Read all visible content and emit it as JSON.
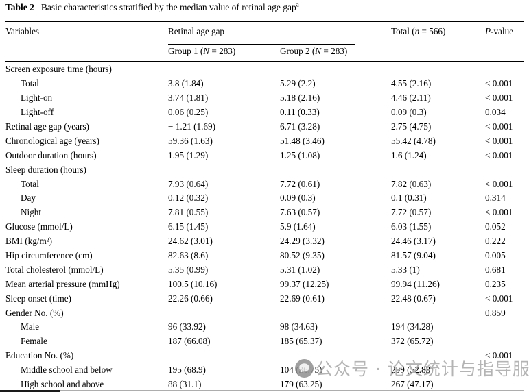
{
  "title": {
    "label": "Table 2",
    "text": "Basic characteristics stratified by the median value of retinal age gap",
    "footnote_marker": "a"
  },
  "table": {
    "header": {
      "variables": "Variables",
      "spanner": "Retinal age gap",
      "group1": {
        "pre": "Group 1 (",
        "italic": "N",
        "post": " = 283)"
      },
      "group2": {
        "pre": "Group 2 (",
        "italic": "N",
        "post": " = 283)"
      },
      "total": {
        "pre": "Total (",
        "italic": "n",
        "post": " = 566)"
      },
      "pvalue": {
        "italic": "P",
        "post": "-value"
      }
    },
    "rows": [
      {
        "label": "Screen exposure time (hours)",
        "indent": false,
        "g1": "",
        "g2": "",
        "total": "",
        "p": ""
      },
      {
        "label": "Total",
        "indent": true,
        "g1": "3.8 (1.84)",
        "g2": "5.29 (2.2)",
        "total": "4.55 (2.16)",
        "p": "< 0.001"
      },
      {
        "label": "Light-on",
        "indent": true,
        "g1": "3.74 (1.81)",
        "g2": "5.18 (2.16)",
        "total": "4.46 (2.11)",
        "p": "< 0.001"
      },
      {
        "label": "Light-off",
        "indent": true,
        "g1": "0.06 (0.25)",
        "g2": "0.11 (0.33)",
        "total": "0.09 (0.3)",
        "p": "0.034"
      },
      {
        "label": "Retinal age gap (years)",
        "indent": false,
        "g1": "− 1.21 (1.69)",
        "g2": "6.71 (3.28)",
        "total": "2.75 (4.75)",
        "p": "< 0.001"
      },
      {
        "label": "Chronological age (years)",
        "indent": false,
        "g1": "59.36 (1.63)",
        "g2": "51.48 (3.46)",
        "total": "55.42 (4.78)",
        "p": "< 0.001"
      },
      {
        "label": "Outdoor duration (hours)",
        "indent": false,
        "g1": "1.95 (1.29)",
        "g2": "1.25 (1.08)",
        "total": "1.6 (1.24)",
        "p": "< 0.001"
      },
      {
        "label": "Sleep duration (hours)",
        "indent": false,
        "g1": "",
        "g2": "",
        "total": "",
        "p": ""
      },
      {
        "label": "Total",
        "indent": true,
        "g1": "7.93 (0.64)",
        "g2": "7.72 (0.61)",
        "total": "7.82 (0.63)",
        "p": "< 0.001"
      },
      {
        "label": "Day",
        "indent": true,
        "g1": "0.12 (0.32)",
        "g2": "0.09 (0.3)",
        "total": "0.1 (0.31)",
        "p": "0.314"
      },
      {
        "label": "Night",
        "indent": true,
        "g1": "7.81 (0.55)",
        "g2": "7.63 (0.57)",
        "total": "7.72 (0.57)",
        "p": "< 0.001"
      },
      {
        "label": "Glucose (mmol/L)",
        "indent": false,
        "g1": "6.15 (1.45)",
        "g2": "5.9 (1.64)",
        "total": "6.03 (1.55)",
        "p": "0.052"
      },
      {
        "label": "BMI (kg/m²)",
        "indent": false,
        "g1": "24.62 (3.01)",
        "g2": "24.29 (3.32)",
        "total": "24.46 (3.17)",
        "p": "0.222"
      },
      {
        "label": "Hip circumference (cm)",
        "indent": false,
        "g1": "82.63 (8.6)",
        "g2": "80.52 (9.35)",
        "total": "81.57 (9.04)",
        "p": "0.005"
      },
      {
        "label": "Total cholesterol (mmol/L)",
        "indent": false,
        "g1": "5.35 (0.99)",
        "g2": "5.31 (1.02)",
        "total": "5.33 (1)",
        "p": "0.681"
      },
      {
        "label": "Mean arterial pressure (mmHg)",
        "indent": false,
        "g1": "100.5 (10.16)",
        "g2": "99.37 (12.25)",
        "total": "99.94 (11.26)",
        "p": "0.235"
      },
      {
        "label": "Sleep onset (time)",
        "indent": false,
        "g1": "22.26 (0.66)",
        "g2": "22.69 (0.61)",
        "total": "22.48 (0.67)",
        "p": "< 0.001"
      },
      {
        "label": "Gender No. (%)",
        "indent": false,
        "g1": "",
        "g2": "",
        "total": "",
        "p": "0.859"
      },
      {
        "label": "Male",
        "indent": true,
        "g1": "96 (33.92)",
        "g2": "98 (34.63)",
        "total": "194 (34.28)",
        "p": ""
      },
      {
        "label": "Female",
        "indent": true,
        "g1": "187 (66.08)",
        "g2": "185 (65.37)",
        "total": "372 (65.72)",
        "p": ""
      },
      {
        "label": "Education No. (%)",
        "indent": false,
        "g1": "",
        "g2": "",
        "total": "",
        "p": "< 0.001"
      },
      {
        "label": "Middle school and below",
        "indent": true,
        "g1": "195 (68.9)",
        "g2": "104 (36.75)",
        "total": "299 (52.83)",
        "p": ""
      },
      {
        "label": "High school and above",
        "indent": true,
        "g1": "88 (31.1)",
        "g2": "179 (63.25)",
        "total": "267 (47.17)",
        "p": ""
      }
    ]
  },
  "watermark": {
    "icon": "chat-bubble-icon",
    "text": "公众号 · 论文统计与指导服务",
    "text_color": "#b0b0b0"
  }
}
